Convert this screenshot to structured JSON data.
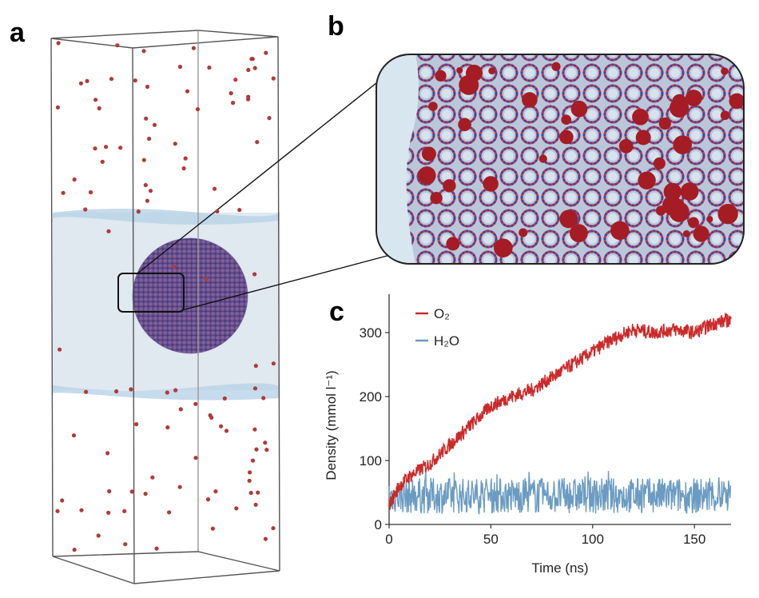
{
  "figure": {
    "panel_labels": {
      "a": "a",
      "b": "b",
      "c": "c"
    }
  },
  "chart_data": {
    "type": "line",
    "title": "",
    "xlabel": "Time (ns)",
    "ylabel": "Density (mmol l⁻¹)",
    "xlim": [
      0,
      168
    ],
    "ylim": [
      0,
      360
    ],
    "xticks": [
      0,
      50,
      100,
      150
    ],
    "yticks": [
      0,
      100,
      200,
      300
    ],
    "grid": false,
    "legend_position": "top-left",
    "series": [
      {
        "name": "O₂",
        "color": "#cc2a2a",
        "x": [
          0,
          5,
          10,
          20,
          30,
          40,
          50,
          60,
          70,
          80,
          90,
          100,
          110,
          120,
          130,
          140,
          150,
          160,
          168
        ],
        "y": [
          30,
          60,
          75,
          95,
          125,
          155,
          185,
          200,
          210,
          230,
          250,
          270,
          290,
          305,
          300,
          305,
          300,
          315,
          320
        ]
      },
      {
        "name": "H₂O",
        "color": "#6b9bc2",
        "x": [
          0,
          168
        ],
        "y": [
          45,
          45
        ],
        "fluctuation_range": [
          15,
          85
        ]
      }
    ]
  }
}
